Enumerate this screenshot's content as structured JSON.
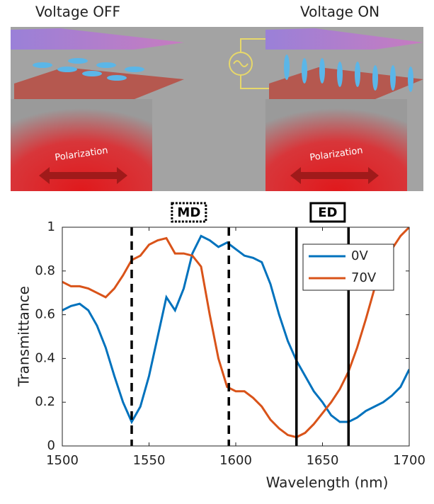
{
  "illustration": {
    "left_title": "Voltage OFF",
    "right_title": "Voltage ON",
    "left_label": "Polarization",
    "right_label": "Polarization"
  },
  "chart_data": {
    "type": "line",
    "x_label": "Wavelength (nm)",
    "y_label": "Transmittance",
    "x": [
      1500,
      1505,
      1510,
      1515,
      1520,
      1525,
      1530,
      1535,
      1540,
      1545,
      1550,
      1555,
      1560,
      1565,
      1570,
      1575,
      1580,
      1585,
      1590,
      1595,
      1600,
      1605,
      1610,
      1615,
      1620,
      1625,
      1630,
      1635,
      1640,
      1645,
      1650,
      1655,
      1660,
      1665,
      1670,
      1675,
      1680,
      1685,
      1690,
      1695,
      1700
    ],
    "series": [
      {
        "name": "0V",
        "color": "#0072bd",
        "values": [
          0.62,
          0.64,
          0.65,
          0.62,
          0.55,
          0.45,
          0.32,
          0.2,
          0.11,
          0.18,
          0.32,
          0.5,
          0.68,
          0.62,
          0.72,
          0.88,
          0.96,
          0.94,
          0.91,
          0.93,
          0.9,
          0.87,
          0.86,
          0.84,
          0.74,
          0.6,
          0.48,
          0.39,
          0.32,
          0.25,
          0.2,
          0.14,
          0.11,
          0.11,
          0.13,
          0.16,
          0.18,
          0.2,
          0.23,
          0.27,
          0.35
        ]
      },
      {
        "name": "70V",
        "color": "#d95319",
        "values": [
          0.75,
          0.73,
          0.73,
          0.72,
          0.7,
          0.68,
          0.72,
          0.78,
          0.85,
          0.87,
          0.92,
          0.94,
          0.95,
          0.88,
          0.88,
          0.87,
          0.82,
          0.6,
          0.4,
          0.27,
          0.25,
          0.25,
          0.22,
          0.18,
          0.12,
          0.08,
          0.05,
          0.04,
          0.06,
          0.1,
          0.15,
          0.2,
          0.26,
          0.34,
          0.45,
          0.58,
          0.72,
          0.83,
          0.9,
          0.96,
          1.0
        ]
      }
    ],
    "xlim": [
      1500,
      1700
    ],
    "xticks": [
      1500,
      1550,
      1600,
      1650,
      1700
    ],
    "ylim": [
      0,
      1
    ],
    "yticks": [
      0,
      0.2,
      0.4,
      0.6,
      0.8,
      1
    ],
    "vlines": [
      {
        "x": 1540,
        "style": "dashed"
      },
      {
        "x": 1596,
        "style": "dashed"
      },
      {
        "x": 1635,
        "style": "solid"
      },
      {
        "x": 1665,
        "style": "solid"
      }
    ],
    "annotations": [
      {
        "text": "MD",
        "x": 1573,
        "style": "dotted"
      },
      {
        "text": "ED",
        "x": 1653,
        "style": "solid"
      }
    ],
    "legend": "upper right"
  }
}
